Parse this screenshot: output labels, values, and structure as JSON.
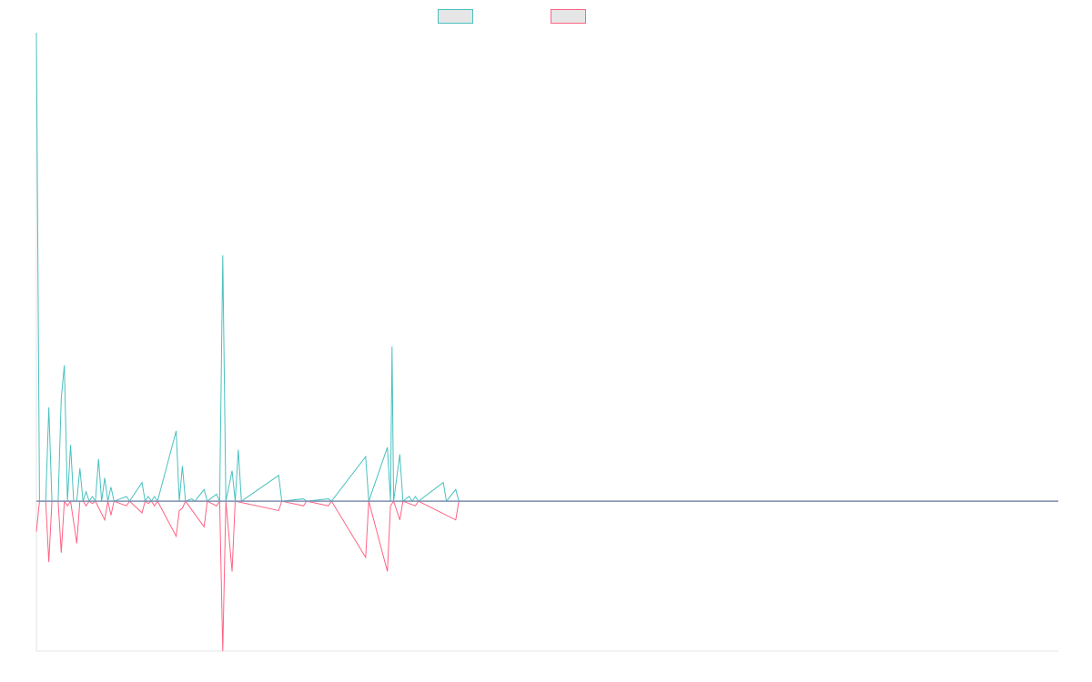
{
  "colors": {
    "series_positive": "#4bc0c0",
    "series_negative": "#ff6384",
    "baseline": "#7f8fb0",
    "axis": "#e5e5e5",
    "legend_fill": "#e6e6e6"
  },
  "chart_data": {
    "type": "line",
    "title": "",
    "xlabel": "",
    "ylabel": "",
    "grid": false,
    "legend_position": "top-center",
    "ylim": [
      -0.32,
      1.0
    ],
    "xlim": [
      0,
      329
    ],
    "series": [
      {
        "color": "#4bc0c0",
        "points": [
          [
            0,
            1.0
          ],
          [
            1,
            0.0
          ],
          [
            2,
            0.0
          ],
          [
            3,
            0.0
          ],
          [
            4,
            0.2
          ],
          [
            5,
            0.0
          ],
          [
            6,
            0.0
          ],
          [
            7,
            0.0
          ],
          [
            8,
            0.22
          ],
          [
            9,
            0.29
          ],
          [
            10,
            0.0
          ],
          [
            11,
            0.12
          ],
          [
            12,
            0.0
          ],
          [
            13,
            0.0
          ],
          [
            14,
            0.07
          ],
          [
            15,
            0.0
          ],
          [
            16,
            0.02
          ],
          [
            17,
            0.0
          ],
          [
            18,
            0.01
          ],
          [
            19,
            0.0
          ],
          [
            20,
            0.09
          ],
          [
            21,
            0.0
          ],
          [
            22,
            0.05
          ],
          [
            23,
            0.0
          ],
          [
            24,
            0.03
          ],
          [
            25,
            0.0
          ],
          [
            29,
            0.01
          ],
          [
            30,
            0.0
          ],
          [
            34,
            0.04
          ],
          [
            35,
            0.0
          ],
          [
            36,
            0.01
          ],
          [
            37,
            0.0
          ],
          [
            38,
            0.01
          ],
          [
            39,
            0.0
          ],
          [
            45,
            0.15
          ],
          [
            46,
            0.0
          ],
          [
            47,
            0.075
          ],
          [
            48,
            0.0
          ],
          [
            50,
            0.005
          ],
          [
            51,
            0.0
          ],
          [
            54,
            0.025
          ],
          [
            55,
            0.0
          ],
          [
            58,
            0.015
          ],
          [
            59,
            0.0
          ],
          [
            60,
            0.525
          ],
          [
            61,
            0.0
          ],
          [
            63,
            0.065
          ],
          [
            64,
            0.0
          ],
          [
            65,
            0.11
          ],
          [
            66,
            0.0
          ],
          [
            78,
            0.055
          ],
          [
            79,
            0.0
          ],
          [
            86,
            0.005
          ],
          [
            87,
            0.0
          ],
          [
            94,
            0.005
          ],
          [
            95,
            0.0
          ],
          [
            106,
            0.095
          ],
          [
            107,
            0.0
          ],
          [
            113,
            0.115
          ],
          [
            114,
            0.0
          ],
          [
            114.5,
            0.33
          ],
          [
            115,
            0.0
          ],
          [
            117,
            0.1
          ],
          [
            118,
            0.0
          ],
          [
            120,
            0.01
          ],
          [
            121,
            0.0
          ],
          [
            122,
            0.01
          ],
          [
            123,
            0.0
          ],
          [
            131,
            0.04
          ],
          [
            132,
            0.0
          ],
          [
            135,
            0.025
          ],
          [
            136,
            0.0
          ],
          [
            329,
            0.0
          ]
        ]
      },
      {
        "color": "#ff6384",
        "points": [
          [
            0,
            -0.065
          ],
          [
            1,
            0.0
          ],
          [
            3,
            0.0
          ],
          [
            4,
            -0.13
          ],
          [
            5,
            0.0
          ],
          [
            7,
            0.0
          ],
          [
            8,
            -0.11
          ],
          [
            9,
            0.0
          ],
          [
            10,
            -0.01
          ],
          [
            11,
            0.0
          ],
          [
            13,
            -0.09
          ],
          [
            14,
            0.0
          ],
          [
            15,
            0.0
          ],
          [
            16,
            -0.01
          ],
          [
            17,
            0.0
          ],
          [
            18,
            -0.005
          ],
          [
            19,
            0.0
          ],
          [
            22,
            -0.04
          ],
          [
            23,
            0.0
          ],
          [
            24,
            -0.03
          ],
          [
            25,
            0.0
          ],
          [
            29,
            -0.01
          ],
          [
            30,
            0.0
          ],
          [
            34,
            -0.025
          ],
          [
            35,
            0.0
          ],
          [
            36,
            -0.005
          ],
          [
            37,
            0.0
          ],
          [
            38,
            -0.01
          ],
          [
            39,
            0.0
          ],
          [
            45,
            -0.075
          ],
          [
            46,
            -0.02
          ],
          [
            47,
            -0.015
          ],
          [
            48,
            0.0
          ],
          [
            54,
            -0.055
          ],
          [
            55,
            0.0
          ],
          [
            58,
            -0.01
          ],
          [
            59,
            0.0
          ],
          [
            60,
            -0.32
          ],
          [
            61,
            0.0
          ],
          [
            63,
            -0.15
          ],
          [
            64,
            0.0
          ],
          [
            78,
            -0.02
          ],
          [
            79,
            0.0
          ],
          [
            86,
            -0.01
          ],
          [
            87,
            0.0
          ],
          [
            94,
            -0.01
          ],
          [
            95,
            0.0
          ],
          [
            106,
            -0.12
          ],
          [
            107,
            0.0
          ],
          [
            113,
            -0.15
          ],
          [
            114,
            -0.01
          ],
          [
            115,
            0.0
          ],
          [
            117,
            -0.04
          ],
          [
            118,
            0.0
          ],
          [
            122,
            -0.01
          ],
          [
            123,
            0.0
          ],
          [
            135,
            -0.04
          ],
          [
            136,
            0.0
          ],
          [
            329,
            0.0
          ]
        ]
      }
    ]
  }
}
